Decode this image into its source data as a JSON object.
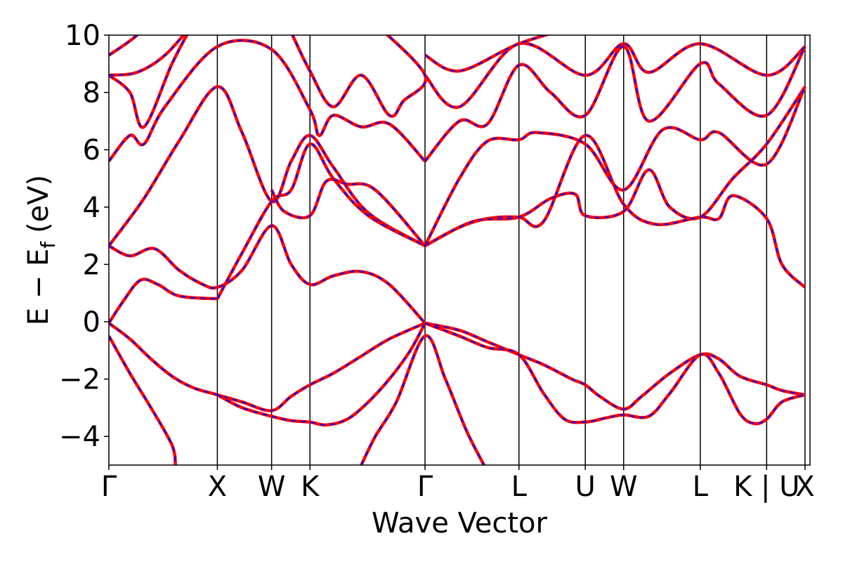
{
  "chart_data": {
    "type": "line",
    "xlabel": "Wave Vector",
    "ylabel_main": "E − E",
    "ylabel_sub": "f",
    "ylabel_unit": "(eV)",
    "ylim": [
      -5,
      10
    ],
    "yticks": [
      -4,
      -2,
      0,
      2,
      4,
      6,
      8,
      10
    ],
    "ytick_labels": [
      "−4",
      "−2",
      "0",
      "2",
      "4",
      "6",
      "8",
      "10"
    ],
    "xlim": [
      0,
      1
    ],
    "kpoints": [
      {
        "label": "Γ",
        "x": 0.0
      },
      {
        "label": "X",
        "x": 0.1547
      },
      {
        "label": "W",
        "x": 0.2321
      },
      {
        "label": "K",
        "x": 0.2868
      },
      {
        "label": "Γ",
        "x": 0.4509
      },
      {
        "label": "L",
        "x": 0.5849
      },
      {
        "label": "U",
        "x": 0.6795
      },
      {
        "label": "W",
        "x": 0.7342
      },
      {
        "label": "L",
        "x": 0.8435
      },
      {
        "label": "K | U",
        "x": 0.9382
      },
      {
        "label": "X",
        "x": 0.9929
      }
    ],
    "colors": {
      "band_line": "#ff0000",
      "band_dash": "#0000ff",
      "kpoint_line": "#000000"
    },
    "series": [
      {
        "points": [
          [
            0,
            -0.5
          ],
          [
            0.03,
            -1.8
          ],
          [
            0.06,
            -3.0
          ],
          [
            0.09,
            -4.3
          ],
          [
            0.095,
            -5
          ]
        ]
      },
      {
        "points": [
          [
            0,
            -0.05
          ],
          [
            0.03,
            -0.6
          ],
          [
            0.06,
            -1.3
          ],
          [
            0.09,
            -1.9
          ],
          [
            0.12,
            -2.3
          ],
          [
            0.1547,
            -2.55
          ],
          [
            0.19,
            -2.8
          ],
          [
            0.2321,
            -3.1
          ],
          [
            0.26,
            -2.6
          ],
          [
            0.2868,
            -2.2
          ],
          [
            0.32,
            -1.8
          ],
          [
            0.36,
            -1.2
          ],
          [
            0.4,
            -0.6
          ],
          [
            0.4509,
            -0.05
          ]
        ]
      },
      {
        "points": [
          [
            0.1547,
            -2.55
          ],
          [
            0.19,
            -3.0
          ],
          [
            0.2321,
            -3.3
          ],
          [
            0.26,
            -3.45
          ],
          [
            0.2868,
            -3.5
          ],
          [
            0.31,
            -3.6
          ],
          [
            0.34,
            -3.4
          ],
          [
            0.37,
            -2.8
          ],
          [
            0.4,
            -2.0
          ],
          [
            0.43,
            -1.0
          ],
          [
            0.4509,
            -0.05
          ]
        ]
      },
      {
        "points": [
          [
            0.36,
            -5
          ],
          [
            0.38,
            -4.0
          ],
          [
            0.41,
            -2.8
          ],
          [
            0.4509,
            -0.5
          ],
          [
            0.48,
            -2.0
          ],
          [
            0.51,
            -3.8
          ],
          [
            0.535,
            -5
          ]
        ]
      },
      {
        "points": [
          [
            0.4509,
            -0.05
          ],
          [
            0.5,
            -0.3
          ],
          [
            0.54,
            -0.7
          ],
          [
            0.5849,
            -1.15
          ],
          [
            0.62,
            -1.5
          ],
          [
            0.66,
            -2.0
          ],
          [
            0.6795,
            -2.2
          ],
          [
            0.7,
            -2.6
          ],
          [
            0.7342,
            -3.05
          ],
          [
            0.76,
            -2.6
          ],
          [
            0.8,
            -1.8
          ],
          [
            0.8435,
            -1.15
          ],
          [
            0.87,
            -1.3
          ],
          [
            0.9,
            -1.9
          ],
          [
            0.9382,
            -2.2
          ],
          [
            0.96,
            -2.4
          ],
          [
            0.9929,
            -2.55
          ]
        ]
      },
      {
        "points": [
          [
            0.4509,
            -0.05
          ],
          [
            0.5,
            -0.5
          ],
          [
            0.54,
            -0.9
          ],
          [
            0.5849,
            -1.15
          ],
          [
            0.62,
            -2.5
          ],
          [
            0.65,
            -3.4
          ],
          [
            0.6795,
            -3.5
          ],
          [
            0.71,
            -3.35
          ],
          [
            0.7342,
            -3.25
          ],
          [
            0.77,
            -3.3
          ],
          [
            0.8,
            -2.5
          ],
          [
            0.8435,
            -1.15
          ],
          [
            0.87,
            -1.8
          ],
          [
            0.9,
            -3.2
          ],
          [
            0.92,
            -3.55
          ],
          [
            0.9382,
            -3.4
          ],
          [
            0.96,
            -2.8
          ],
          [
            0.9929,
            -2.55
          ]
        ]
      },
      {
        "points": [
          [
            0,
            -0.05
          ],
          [
            0.02,
            0.7
          ],
          [
            0.045,
            1.45
          ],
          [
            0.07,
            1.3
          ],
          [
            0.1,
            0.9
          ],
          [
            0.1547,
            0.8
          ]
        ]
      },
      {
        "points": [
          [
            0,
            2.65
          ],
          [
            0.03,
            2.3
          ],
          [
            0.065,
            2.55
          ],
          [
            0.1,
            1.8
          ],
          [
            0.13,
            1.35
          ],
          [
            0.1547,
            1.2
          ],
          [
            0.19,
            1.8
          ],
          [
            0.2321,
            3.35
          ],
          [
            0.26,
            2.0
          ],
          [
            0.2868,
            1.3
          ],
          [
            0.32,
            1.6
          ],
          [
            0.36,
            1.75
          ],
          [
            0.4,
            1.3
          ],
          [
            0.4509,
            -0.05
          ]
        ]
      },
      {
        "points": [
          [
            0,
            2.65
          ],
          [
            0.05,
            4.3
          ],
          [
            0.1,
            6.3
          ],
          [
            0.1547,
            8.2
          ],
          [
            0.19,
            6.6
          ],
          [
            0.2321,
            4.2
          ],
          [
            0.26,
            5.6
          ],
          [
            0.2868,
            6.5
          ],
          [
            0.32,
            5.4
          ],
          [
            0.37,
            3.8
          ],
          [
            0.4509,
            2.65
          ]
        ]
      },
      {
        "points": [
          [
            0.1547,
            0.8
          ],
          [
            0.19,
            2.4
          ],
          [
            0.2321,
            4.2
          ],
          [
            0.26,
            4.6
          ],
          [
            0.2868,
            6.2
          ],
          [
            0.32,
            5.0
          ],
          [
            0.37,
            3.7
          ],
          [
            0.4509,
            2.65
          ]
        ]
      },
      {
        "points": [
          [
            0,
            5.6
          ],
          [
            0.03,
            6.5
          ],
          [
            0.05,
            6.2
          ],
          [
            0.08,
            7.5
          ],
          [
            0.1547,
            9.6
          ],
          [
            0.2321,
            9.5
          ],
          [
            0.2868,
            7.4
          ],
          [
            0.3,
            6.5
          ],
          [
            0.32,
            7.2
          ],
          [
            0.36,
            6.8
          ],
          [
            0.4,
            6.9
          ],
          [
            0.4509,
            5.6
          ]
        ]
      },
      {
        "points": [
          [
            0,
            8.6
          ],
          [
            0.03,
            8.0
          ],
          [
            0.05,
            6.8
          ],
          [
            0.09,
            9.0
          ],
          [
            0.12,
            10.4
          ]
        ]
      },
      {
        "points": [
          [
            0,
            8.6
          ],
          [
            0.04,
            8.7
          ],
          [
            0.08,
            9.3
          ],
          [
            0.12,
            10.4
          ]
        ]
      },
      {
        "points": [
          [
            0,
            9.3
          ],
          [
            0.03,
            9.8
          ],
          [
            0.06,
            10.4
          ]
        ]
      },
      {
        "points": [
          [
            0.2321,
            4.6
          ],
          [
            0.25,
            3.85
          ],
          [
            0.2868,
            3.7
          ],
          [
            0.31,
            4.9
          ],
          [
            0.34,
            4.8
          ],
          [
            0.38,
            4.6
          ],
          [
            0.4509,
            2.65
          ]
        ]
      },
      {
        "points": [
          [
            0.4509,
            2.65
          ],
          [
            0.5,
            3.3
          ],
          [
            0.54,
            3.6
          ],
          [
            0.5849,
            3.65
          ],
          [
            0.62,
            3.5
          ],
          [
            0.6795,
            6.5
          ],
          [
            0.7342,
            4.1
          ],
          [
            0.78,
            3.4
          ],
          [
            0.8435,
            3.65
          ],
          [
            0.87,
            3.6
          ],
          [
            0.89,
            4.4
          ],
          [
            0.9382,
            3.6
          ],
          [
            0.96,
            2.0
          ],
          [
            0.9929,
            1.2
          ]
        ]
      },
      {
        "points": [
          [
            0.4509,
            2.65
          ],
          [
            0.52,
            3.5
          ],
          [
            0.5849,
            3.65
          ],
          [
            0.63,
            4.3
          ],
          [
            0.665,
            4.45
          ],
          [
            0.6795,
            3.7
          ],
          [
            0.7342,
            3.85
          ],
          [
            0.77,
            5.3
          ],
          [
            0.8,
            4.0
          ],
          [
            0.8435,
            3.65
          ],
          [
            0.89,
            5.0
          ],
          [
            0.9382,
            6.2
          ],
          [
            0.9929,
            8.2
          ]
        ]
      },
      {
        "points": [
          [
            0.4509,
            2.65
          ],
          [
            0.5,
            5.0
          ],
          [
            0.54,
            6.3
          ],
          [
            0.5849,
            6.35
          ],
          [
            0.61,
            6.6
          ],
          [
            0.6795,
            6.2
          ],
          [
            0.7342,
            4.6
          ],
          [
            0.79,
            6.7
          ],
          [
            0.8435,
            6.35
          ],
          [
            0.87,
            6.6
          ],
          [
            0.9382,
            5.5
          ],
          [
            0.9929,
            8.2
          ]
        ]
      },
      {
        "points": [
          [
            0.4509,
            5.6
          ],
          [
            0.5,
            7.0
          ],
          [
            0.54,
            6.9
          ],
          [
            0.5849,
            8.95
          ],
          [
            0.63,
            8.0
          ],
          [
            0.6795,
            7.2
          ],
          [
            0.7342,
            9.6
          ],
          [
            0.77,
            7.0
          ],
          [
            0.8435,
            9.0
          ],
          [
            0.87,
            8.3
          ],
          [
            0.9382,
            7.2
          ],
          [
            0.9929,
            9.6
          ]
        ]
      },
      {
        "points": [
          [
            0.4509,
            8.6
          ],
          [
            0.5,
            7.5
          ],
          [
            0.5849,
            9.7
          ],
          [
            0.6795,
            8.6
          ],
          [
            0.7342,
            9.7
          ],
          [
            0.77,
            8.7
          ],
          [
            0.8435,
            9.7
          ],
          [
            0.9382,
            8.6
          ],
          [
            0.9929,
            9.6
          ]
        ]
      },
      {
        "points": [
          [
            0.4509,
            9.3
          ],
          [
            0.5,
            8.75
          ],
          [
            0.5849,
            9.7
          ],
          [
            0.6795,
            10.4
          ]
        ]
      },
      {
        "points": [
          [
            0.38,
            10.4
          ],
          [
            0.4509,
            8.6
          ],
          [
            0.42,
            7.7
          ],
          [
            0.4,
            7.2
          ],
          [
            0.36,
            8.6
          ],
          [
            0.32,
            7.5
          ],
          [
            0.2868,
            8.75
          ],
          [
            0.26,
            10.1
          ]
        ]
      }
    ]
  }
}
